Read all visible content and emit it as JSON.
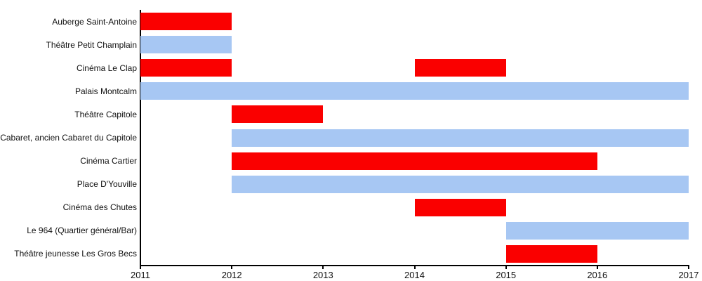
{
  "chart_data": {
    "type": "gantt",
    "title": "",
    "xlabel": "",
    "ylabel": "",
    "legend": "none",
    "grid": false,
    "x_axis": {
      "min": 2011,
      "max": 2017,
      "ticks": [
        "2011",
        "2012",
        "2013",
        "2014",
        "2015",
        "2016",
        "2017"
      ]
    },
    "colors": {
      "red": "#fa0000",
      "blue": "#a7c7f3",
      "axis": "#000000",
      "text": "#111111"
    },
    "rows": [
      {
        "label": "Auberge Saint-Antoine",
        "segments": [
          {
            "start": 2011,
            "end": 2012,
            "color": "red"
          }
        ]
      },
      {
        "label": "Théâtre Petit Champlain",
        "segments": [
          {
            "start": 2011,
            "end": 2012,
            "color": "blue"
          }
        ]
      },
      {
        "label": "Cinéma Le Clap",
        "segments": [
          {
            "start": 2011,
            "end": 2012,
            "color": "red"
          },
          {
            "start": 2014,
            "end": 2015,
            "color": "red"
          }
        ]
      },
      {
        "label": "Palais Montcalm",
        "segments": [
          {
            "start": 2011,
            "end": 2017,
            "color": "blue"
          }
        ]
      },
      {
        "label": "Théâtre Capitole",
        "segments": [
          {
            "start": 2012,
            "end": 2013,
            "color": "red"
          }
        ]
      },
      {
        "label": "Cabaret, ancien Cabaret du Capitole",
        "segments": [
          {
            "start": 2012,
            "end": 2017,
            "color": "blue"
          }
        ]
      },
      {
        "label": "Cinéma Cartier",
        "segments": [
          {
            "start": 2012,
            "end": 2016,
            "color": "red"
          }
        ]
      },
      {
        "label": "Place D'Youville",
        "segments": [
          {
            "start": 2012,
            "end": 2017,
            "color": "blue"
          }
        ]
      },
      {
        "label": "Cinéma des Chutes",
        "segments": [
          {
            "start": 2014,
            "end": 2015,
            "color": "red"
          }
        ]
      },
      {
        "label": "Le 964 (Quartier général/Bar)",
        "segments": [
          {
            "start": 2015,
            "end": 2017,
            "color": "blue"
          }
        ]
      },
      {
        "label": "Théâtre jeunesse Les Gros Becs",
        "segments": [
          {
            "start": 2015,
            "end": 2016,
            "color": "red"
          }
        ]
      }
    ]
  }
}
